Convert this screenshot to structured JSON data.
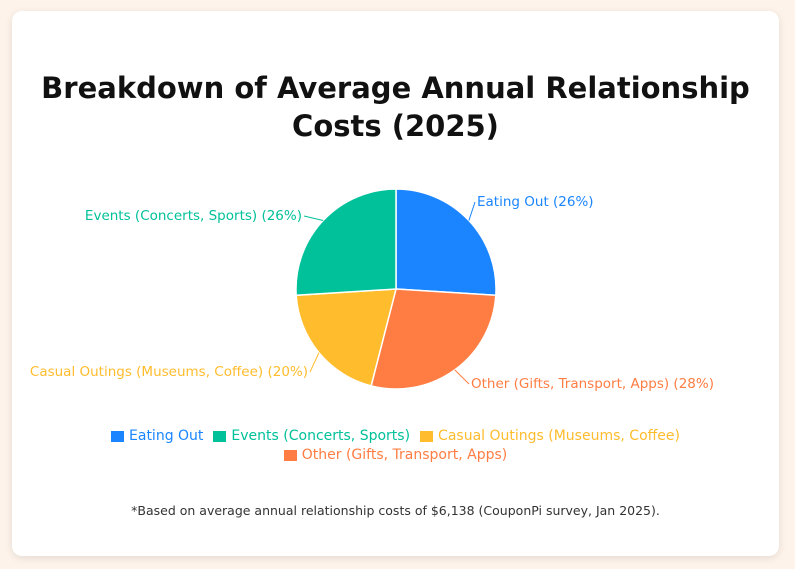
{
  "colors": {
    "eating_out": "#1a85ff",
    "events": "#00c19a",
    "casual": "#ffbc2c",
    "other": "#ff7d43"
  },
  "chart_data": {
    "type": "pie",
    "title": "Breakdown of Average Annual Relationship Costs (2025)",
    "title_lines": [
      "Breakdown of Average Annual Relationship",
      "Costs (2025)"
    ],
    "slices": [
      {
        "name": "Eating Out",
        "value": 26,
        "label": "Eating Out (26%)",
        "color": "#1a85ff"
      },
      {
        "name": "Other (Gifts, Transport, Apps)",
        "value": 28,
        "label": "Other (Gifts, Transport, Apps) (28%)",
        "color": "#ff7d43"
      },
      {
        "name": "Casual Outings (Museums, Coffee)",
        "value": 20,
        "label": "Casual Outings (Museums, Coffee) (20%)",
        "color": "#ffbc2c"
      },
      {
        "name": "Events (Concerts, Sports)",
        "value": 26,
        "label": "Events (Concerts, Sports) (26%)",
        "color": "#00c19a"
      }
    ],
    "legend": [
      {
        "label": "Eating Out",
        "color": "#1a85ff"
      },
      {
        "label": "Events (Concerts, Sports)",
        "color": "#00c19a"
      },
      {
        "label": "Casual Outings (Museums, Coffee)",
        "color": "#ffbc2c"
      },
      {
        "label": "Other (Gifts, Transport, Apps)",
        "color": "#ff7d43"
      }
    ],
    "legend_placement": "bottom",
    "footnote": "*Based on average annual relationship costs of $6,138 (CouponPi survey, Jan 2025)."
  }
}
